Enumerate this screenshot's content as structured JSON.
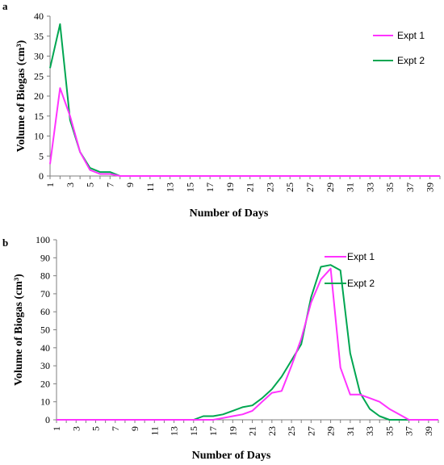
{
  "chart_data": [
    {
      "panel_label": "a",
      "type": "line",
      "title": "",
      "xlabel": "Number  of Days",
      "ylabel": "Volume  of Biogas (cm³)",
      "ylim": [
        0,
        40
      ],
      "yticks": [
        0,
        5,
        10,
        15,
        20,
        25,
        30,
        35,
        40
      ],
      "xlim": [
        1,
        40
      ],
      "xticks": [
        "1",
        "3",
        "5",
        "7",
        "9",
        "11",
        "13",
        "15",
        "17",
        "19",
        "21",
        "23",
        "25",
        "27",
        "29",
        "31",
        "33",
        "35",
        "37",
        "39"
      ],
      "grid": false,
      "legend_position": "top-right",
      "series": [
        {
          "name": "Expt 1",
          "color": "#ff33ff",
          "x": [
            1,
            2,
            3,
            4,
            5,
            6,
            7,
            8,
            9,
            10,
            11,
            12,
            13,
            14,
            15,
            16,
            17,
            18,
            19,
            20,
            21,
            22,
            23,
            24,
            25,
            26,
            27,
            28,
            29,
            30,
            31,
            32,
            33,
            34,
            35,
            36,
            37,
            38,
            39,
            40
          ],
          "y": [
            3,
            22,
            15,
            6,
            1.5,
            0.5,
            0.5,
            0,
            0,
            0,
            0,
            0,
            0,
            0,
            0,
            0,
            0,
            0,
            0,
            0,
            0,
            0,
            0,
            0,
            0,
            0,
            0,
            0,
            0,
            0,
            0,
            0,
            0,
            0,
            0,
            0,
            0,
            0,
            0,
            0
          ]
        },
        {
          "name": "Expt 2",
          "color": "#00a651",
          "x": [
            1,
            2,
            3,
            4,
            5,
            6,
            7,
            8,
            9,
            10,
            11,
            12,
            13,
            14,
            15,
            16,
            17,
            18,
            19,
            20,
            21,
            22,
            23,
            24,
            25,
            26,
            27,
            28,
            29,
            30,
            31,
            32,
            33,
            34,
            35,
            36,
            37,
            38,
            39,
            40
          ],
          "y": [
            27,
            38,
            14,
            6,
            2,
            1,
            1,
            0,
            0,
            0,
            0,
            0,
            0,
            0,
            0,
            0,
            0,
            0,
            0,
            0,
            0,
            0,
            0,
            0,
            0,
            0,
            0,
            0,
            0,
            0,
            0,
            0,
            0,
            0,
            0,
            0,
            0,
            0,
            0,
            0
          ]
        }
      ]
    },
    {
      "panel_label": "b",
      "type": "line",
      "title": "",
      "xlabel": "Number  of Days",
      "ylabel": "Volume  of Biogas (cm³)",
      "ylim": [
        0,
        100
      ],
      "yticks": [
        0,
        10,
        20,
        30,
        40,
        50,
        60,
        70,
        80,
        90,
        100
      ],
      "xlim": [
        1,
        40
      ],
      "xticks": [
        "1",
        "3",
        "5",
        "7",
        "9",
        "11",
        "13",
        "15",
        "17",
        "19",
        "21",
        "23",
        "25",
        "27",
        "29",
        "31",
        "33",
        "35",
        "37",
        "39"
      ],
      "grid": false,
      "legend_position": "top-right",
      "series": [
        {
          "name": "Expt 1",
          "color": "#ff33ff",
          "x": [
            1,
            2,
            3,
            4,
            5,
            6,
            7,
            8,
            9,
            10,
            11,
            12,
            13,
            14,
            15,
            16,
            17,
            18,
            19,
            20,
            21,
            22,
            23,
            24,
            25,
            26,
            27,
            28,
            29,
            30,
            31,
            32,
            33,
            34,
            35,
            36,
            37,
            38,
            39,
            40
          ],
          "y": [
            0,
            0,
            0,
            0,
            0,
            0,
            0,
            0,
            0,
            0,
            0,
            0,
            0,
            0,
            0,
            0,
            0,
            1,
            2,
            3,
            5,
            10,
            15,
            16,
            30,
            45,
            65,
            78,
            84,
            29,
            14,
            14,
            12,
            10,
            6,
            3,
            0,
            0,
            0,
            0
          ]
        },
        {
          "name": "Expt 2",
          "color": "#00a651",
          "x": [
            1,
            2,
            3,
            4,
            5,
            6,
            7,
            8,
            9,
            10,
            11,
            12,
            13,
            14,
            15,
            16,
            17,
            18,
            19,
            20,
            21,
            22,
            23,
            24,
            25,
            26,
            27,
            28,
            29,
            30,
            31,
            32,
            33,
            34,
            35,
            36,
            37,
            38,
            39,
            40
          ],
          "y": [
            0,
            0,
            0,
            0,
            0,
            0,
            0,
            0,
            0,
            0,
            0,
            0,
            0,
            0,
            0,
            2,
            2,
            3,
            5,
            7,
            8,
            12,
            17,
            24,
            33,
            42,
            68,
            85,
            86,
            83,
            37,
            15,
            6,
            2,
            0,
            0,
            0,
            0,
            0,
            0
          ]
        }
      ]
    }
  ]
}
